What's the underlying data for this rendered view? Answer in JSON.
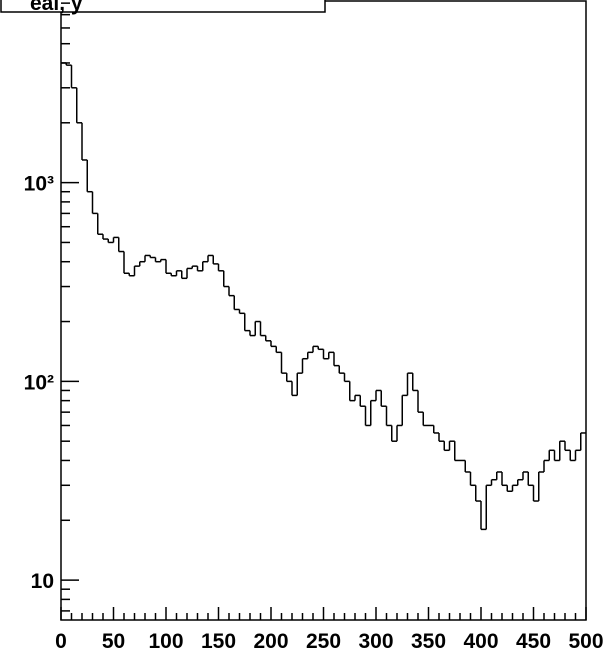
{
  "chart_data": {
    "type": "histogram",
    "title": "eal,            y",
    "bins": [
      0,
      5,
      10,
      15,
      20,
      25,
      30,
      35,
      40,
      45,
      50,
      55,
      60,
      65,
      70,
      75,
      80,
      85,
      90,
      95,
      100,
      105,
      110,
      115,
      120,
      125,
      130,
      135,
      140,
      145,
      150,
      155,
      160,
      165,
      170,
      175,
      180,
      185,
      190,
      195,
      200,
      205,
      210,
      215,
      220,
      225,
      230,
      235,
      240,
      245,
      250,
      255,
      260,
      265,
      270,
      275,
      280,
      285,
      290,
      295,
      300,
      305,
      310,
      315,
      320,
      325,
      330,
      335,
      340,
      345,
      350,
      355,
      360,
      365,
      370,
      375,
      380,
      385,
      390,
      395,
      400,
      405,
      410,
      415,
      420,
      425,
      430,
      435,
      440,
      445,
      450,
      455,
      460,
      465,
      470,
      475,
      480,
      485,
      490,
      495,
      500
    ],
    "values": [
      4000,
      3900,
      3000,
      2000,
      1300,
      900,
      700,
      550,
      520,
      500,
      530,
      450,
      350,
      340,
      380,
      400,
      430,
      420,
      400,
      410,
      350,
      340,
      360,
      330,
      370,
      380,
      360,
      400,
      430,
      390,
      360,
      300,
      270,
      230,
      220,
      180,
      170,
      200,
      170,
      160,
      150,
      140,
      110,
      100,
      85,
      110,
      130,
      140,
      150,
      145,
      130,
      140,
      120,
      110,
      100,
      80,
      85,
      75,
      60,
      80,
      90,
      75,
      60,
      50,
      60,
      85,
      110,
      90,
      70,
      60,
      60,
      55,
      50,
      45,
      50,
      40,
      40,
      35,
      30,
      25,
      18,
      30,
      32,
      35,
      30,
      28,
      30,
      32,
      35,
      30,
      25,
      35,
      40,
      45,
      40,
      50,
      45,
      40,
      45,
      55
    ],
    "color": "#000000",
    "log_y": true,
    "xlim": [
      0,
      500
    ],
    "xticks": [
      0,
      50,
      100,
      150,
      200,
      250,
      300,
      350,
      400,
      450,
      500
    ],
    "xminorticks": [
      10,
      20,
      30,
      40,
      60,
      70,
      80,
      90,
      110,
      120,
      130,
      140,
      160,
      170,
      180,
      190,
      210,
      220,
      230,
      240,
      260,
      270,
      280,
      290,
      310,
      320,
      330,
      340,
      360,
      370,
      380,
      390,
      410,
      420,
      430,
      440,
      460,
      470,
      480,
      490
    ],
    "ylim": [
      6.3,
      8200
    ],
    "yticks": [
      10,
      {
        "value": 100,
        "label": "10²"
      },
      {
        "value": 1000,
        "label": "10³"
      }
    ],
    "yminorticks": [
      7,
      8,
      9,
      20,
      30,
      40,
      50,
      60,
      70,
      80,
      90,
      200,
      300,
      400,
      500,
      600,
      700,
      800,
      900,
      2000,
      3000,
      4000,
      5000,
      6000,
      7000,
      8000
    ]
  }
}
